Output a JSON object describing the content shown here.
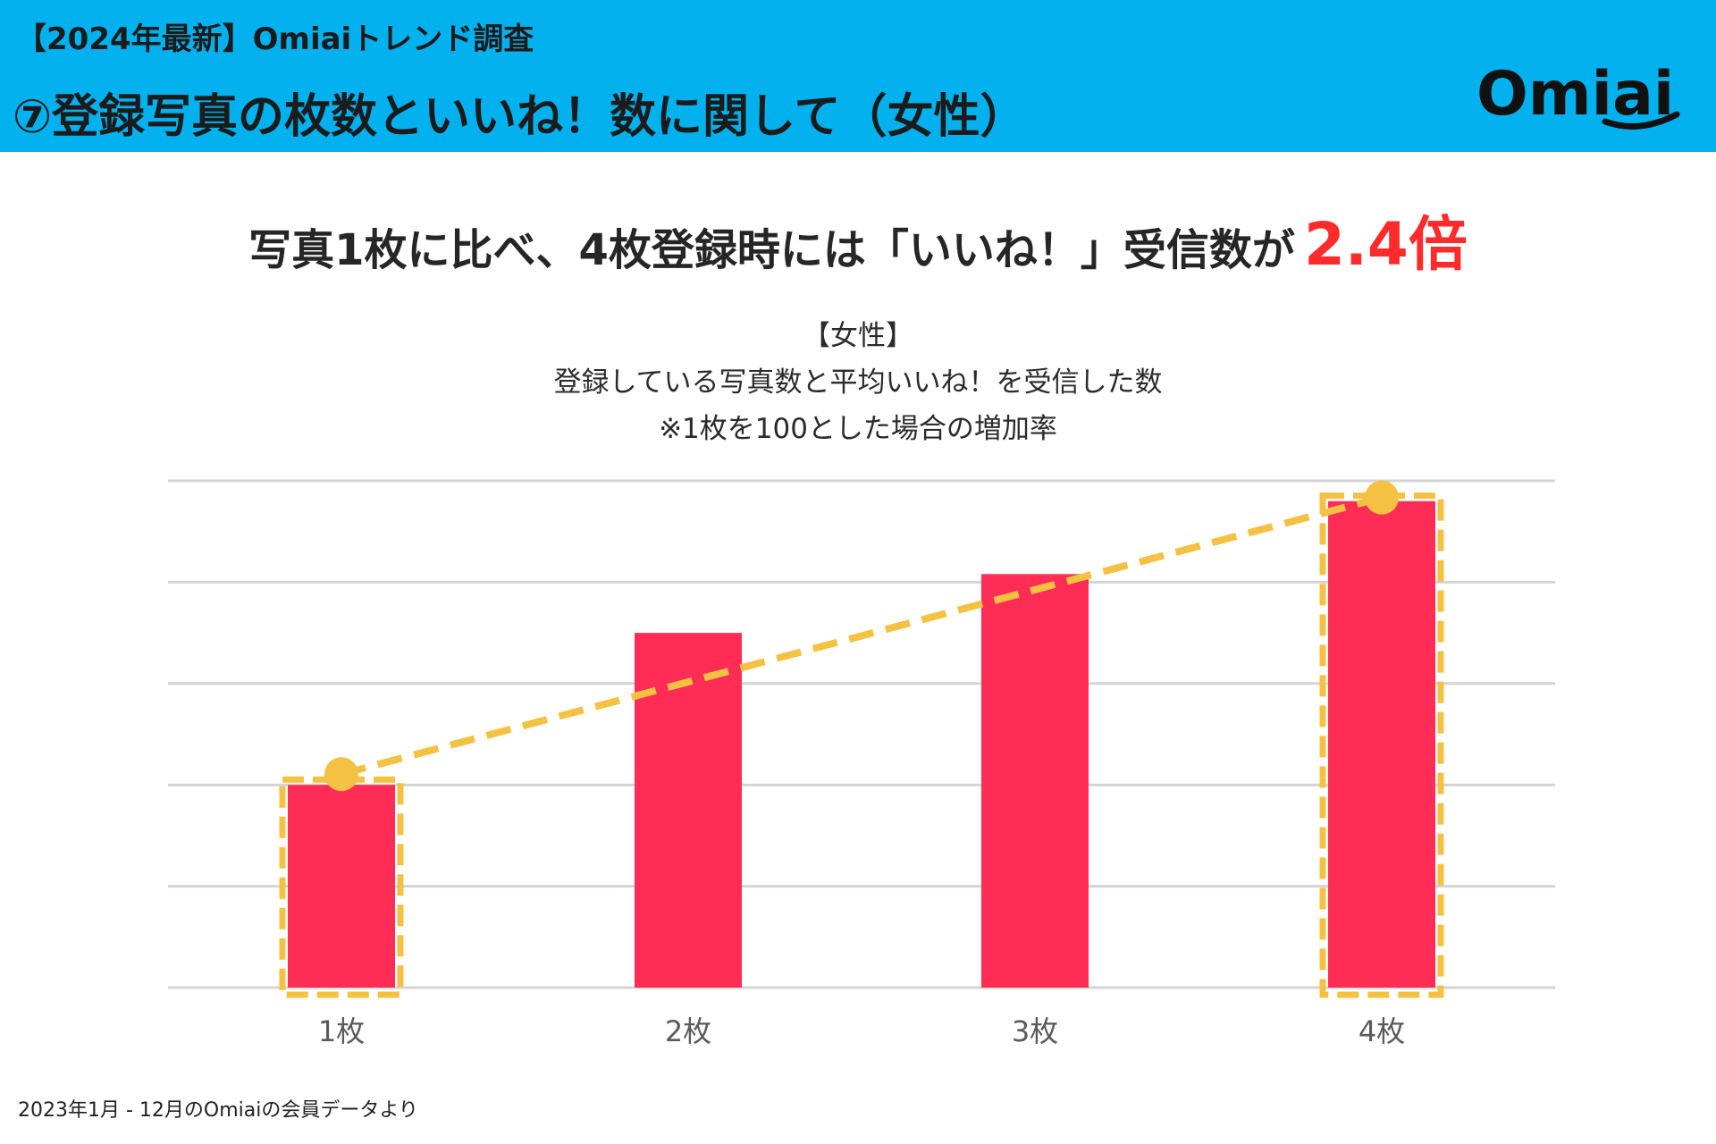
{
  "header": {
    "subtitle": "【2024年最新】Omiaiトレンド調査",
    "title": "⑦登録写真の枚数といいね！数に関して（女性）",
    "logo_text": "Omiai",
    "background_color": "#03b1ee"
  },
  "headline": {
    "text": "写真1枚に比べ、4枚登録時には「いいね！」受信数が",
    "accent": "2.4倍",
    "accent_color": "#ff2a2a"
  },
  "chart_data": {
    "type": "bar",
    "title_lines": [
      "【女性】",
      "登録している写真数と平均いいね！を受信した数",
      "※1枚を100とした場合の増加率"
    ],
    "categories": [
      "1枚",
      "2枚",
      "3枚",
      "4枚"
    ],
    "values": [
      100,
      175,
      204,
      240
    ],
    "ylim": [
      0,
      250
    ],
    "gridlines": [
      0,
      50,
      100,
      150,
      200,
      250
    ],
    "bar_color": "#ff2d55",
    "highlight_categories": [
      "1枚",
      "4枚"
    ],
    "trend_line": {
      "from": "1枚",
      "to": "4枚",
      "color": "#f5c142",
      "style": "dashed"
    },
    "xlabel": "",
    "ylabel": "",
    "legend": "none"
  },
  "footnote": "2023年1月 - 12月のOmiaiの会員データより"
}
